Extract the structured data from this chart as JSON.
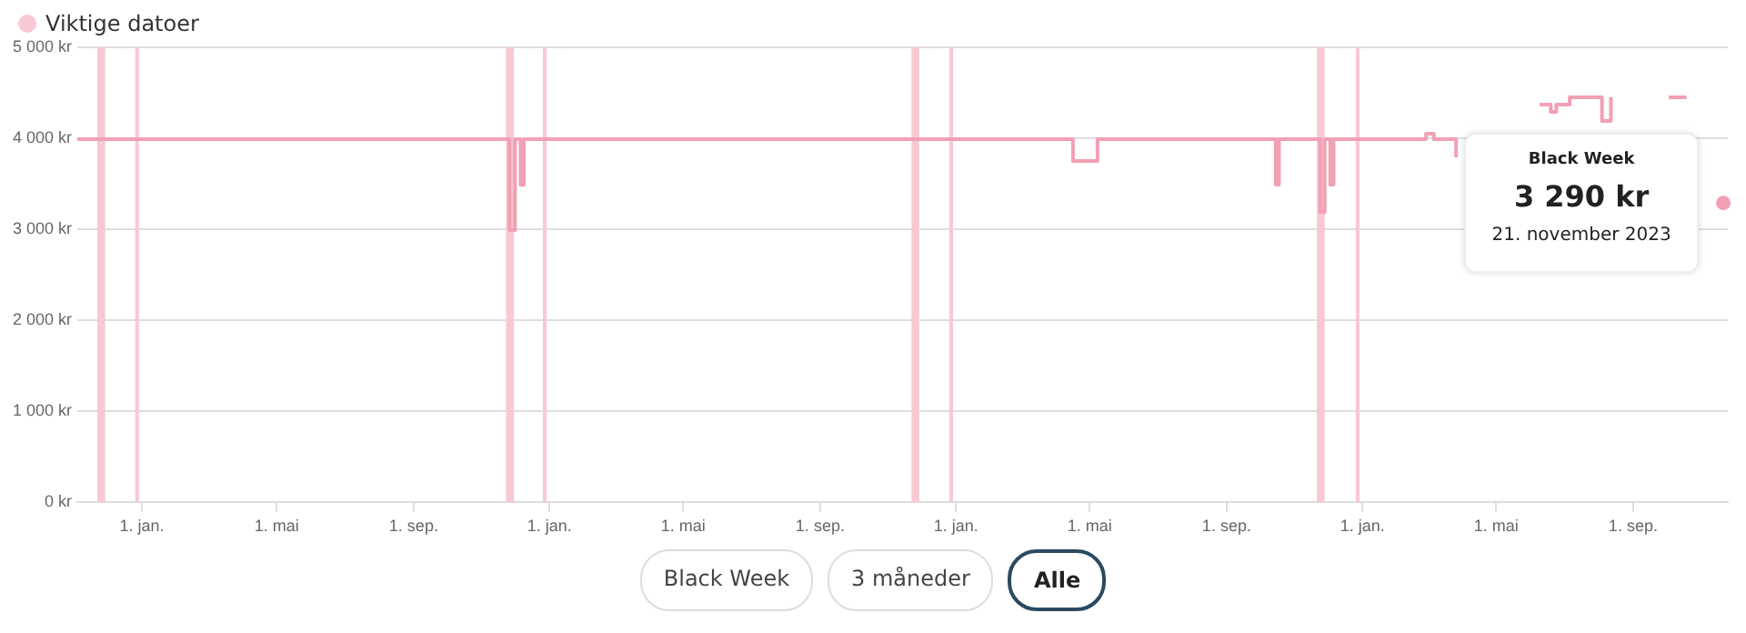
{
  "chart_data": {
    "type": "step",
    "legend": "top left",
    "grid": "y",
    "marker": "none",
    "line_style": "solid",
    "xlim": [
      "2019-11-04",
      "2023-11-25"
    ],
    "xticks": [
      {
        "value": "2020-01-01",
        "label": "1. jan."
      },
      {
        "value": "2020-05-01",
        "label": "1. mai"
      },
      {
        "value": "2020-09-01",
        "label": "1. sep."
      },
      {
        "value": "2021-01-01",
        "label": "1. jan."
      },
      {
        "value": "2021-05-01",
        "label": "1. mai"
      },
      {
        "value": "2021-09-01",
        "label": "1. sep."
      },
      {
        "value": "2022-01-01",
        "label": "1. jan."
      },
      {
        "value": "2022-05-01",
        "label": "1. mai"
      },
      {
        "value": "2022-09-01",
        "label": "1. sep."
      },
      {
        "value": "2023-01-01",
        "label": "1. jan."
      },
      {
        "value": "2023-05-01",
        "label": "1. mai"
      },
      {
        "value": "2023-09-01",
        "label": "1. sep."
      }
    ],
    "ylim": [
      0,
      5000
    ],
    "yticks": [
      {
        "value": 0,
        "label": "0 kr"
      },
      {
        "value": 1000,
        "label": "1 000 kr"
      },
      {
        "value": 2000,
        "label": "2 000 kr"
      },
      {
        "value": 3000,
        "label": "3 000 kr"
      },
      {
        "value": 4000,
        "label": "4 000 kr"
      },
      {
        "value": 5000,
        "label": "5 000 kr"
      }
    ],
    "series": [
      {
        "color": "#f2a0b4",
        "x": [
          "2019-11-04",
          "2020-11-26",
          "2020-12-01",
          "2020-12-06",
          "2020-12-09",
          "2022-04-16",
          "2022-05-08",
          "2022-10-15",
          "2022-10-18",
          "2022-11-24",
          "2022-11-28",
          "2022-12-03",
          "2022-12-06",
          "2023-02-27",
          "2023-03-06",
          "2023-03-26",
          "2023-04-05",
          "2023-06-09",
          "2023-06-19",
          "2023-06-24",
          "2023-07-06",
          "2023-08-04",
          "2023-08-12",
          "2023-09-17",
          "2023-10-03",
          "2023-10-19",
          "2023-10-21",
          "2023-11-21"
        ],
        "values": [
          3990,
          2990,
          3990,
          3490,
          3990,
          3750,
          3990,
          3490,
          3990,
          3190,
          3990,
          3490,
          3990,
          4050,
          3990,
          3790,
          null,
          4370,
          4290,
          4370,
          4450,
          4190,
          4450,
          null,
          4450,
          4450,
          null,
          3290
        ]
      }
    ],
    "bands": [
      {
        "axis": "x",
        "from": "2019-11-22",
        "to": "2019-11-29",
        "label": "Viktige datoer",
        "color": "#f8c8d3"
      },
      {
        "axis": "x",
        "from": "2019-12-26",
        "to": "2019-12-28",
        "color": "#f8c8d3"
      },
      {
        "axis": "x",
        "from": "2020-11-23",
        "to": "2020-11-30",
        "color": "#f8c8d3"
      },
      {
        "axis": "x",
        "from": "2020-12-26",
        "to": "2020-12-28",
        "color": "#f8c8d3"
      },
      {
        "axis": "x",
        "from": "2021-11-22",
        "to": "2021-11-29",
        "color": "#f8c8d3"
      },
      {
        "axis": "x",
        "from": "2021-12-26",
        "to": "2021-12-28",
        "color": "#f8c8d3"
      },
      {
        "axis": "x",
        "from": "2022-11-21",
        "to": "2022-11-28",
        "color": "#f8c8d3"
      },
      {
        "axis": "x",
        "from": "2022-12-26",
        "to": "2022-12-28",
        "color": "#f8c8d3"
      }
    ],
    "annotations": [
      {
        "text": "Black Week\n3 290 kr\n21. november 2023",
        "x": "2023-11-21",
        "y": 3290
      },
      "Black Week",
      "3 måneder",
      "Alle"
    ]
  }
}
